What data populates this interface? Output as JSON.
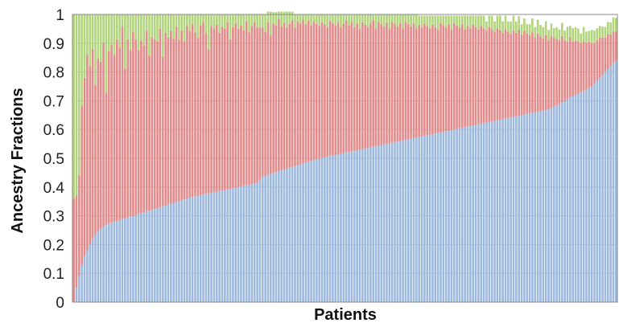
{
  "chart_data": {
    "type": "bar",
    "stacked": true,
    "xlabel": "Patients",
    "ylabel": "Ancestry Fractions",
    "ylim": [
      0,
      1
    ],
    "yticks": [
      "0",
      "0.1",
      "0.2",
      "0.3",
      "0.4",
      "0.5",
      "0.6",
      "0.7",
      "0.8",
      "0.9",
      "1"
    ],
    "grid": true,
    "legend": "none",
    "sort": "ascending by first series",
    "series": [
      {
        "color": "#9db9de",
        "values": [
          0.0,
          0.05,
          0.09,
          0.13,
          0.16,
          0.18,
          0.2,
          0.22,
          0.235,
          0.245,
          0.255,
          0.262,
          0.268,
          0.272,
          0.276,
          0.279,
          0.282,
          0.285,
          0.288,
          0.291,
          0.294,
          0.297,
          0.3,
          0.303,
          0.306,
          0.309,
          0.312,
          0.315,
          0.318,
          0.321,
          0.324,
          0.327,
          0.33,
          0.333,
          0.336,
          0.339,
          0.342,
          0.345,
          0.348,
          0.351,
          0.354,
          0.357,
          0.36,
          0.363,
          0.366,
          0.368,
          0.37,
          0.372,
          0.374,
          0.376,
          0.378,
          0.38,
          0.382,
          0.384,
          0.386,
          0.388,
          0.39,
          0.392,
          0.394,
          0.396,
          0.398,
          0.4,
          0.402,
          0.404,
          0.406,
          0.408,
          0.41,
          0.412,
          0.415,
          0.425,
          0.435,
          0.44,
          0.443,
          0.446,
          0.449,
          0.452,
          0.455,
          0.458,
          0.461,
          0.464,
          0.467,
          0.47,
          0.473,
          0.476,
          0.479,
          0.482,
          0.485,
          0.488,
          0.491,
          0.494,
          0.497,
          0.5,
          0.502,
          0.504,
          0.506,
          0.508,
          0.51,
          0.512,
          0.514,
          0.516,
          0.518,
          0.52,
          0.522,
          0.524,
          0.526,
          0.528,
          0.53,
          0.532,
          0.534,
          0.536,
          0.538,
          0.54,
          0.542,
          0.544,
          0.546,
          0.548,
          0.55,
          0.552,
          0.554,
          0.556,
          0.558,
          0.56,
          0.562,
          0.564,
          0.566,
          0.568,
          0.57,
          0.572,
          0.574,
          0.576,
          0.578,
          0.58,
          0.582,
          0.584,
          0.586,
          0.588,
          0.59,
          0.592,
          0.594,
          0.596,
          0.598,
          0.6,
          0.602,
          0.604,
          0.606,
          0.608,
          0.61,
          0.612,
          0.614,
          0.616,
          0.618,
          0.62,
          0.622,
          0.624,
          0.626,
          0.628,
          0.63,
          0.632,
          0.634,
          0.636,
          0.638,
          0.64,
          0.642,
          0.644,
          0.646,
          0.648,
          0.65,
          0.652,
          0.654,
          0.656,
          0.658,
          0.66,
          0.662,
          0.664,
          0.666,
          0.668,
          0.67,
          0.675,
          0.68,
          0.685,
          0.69,
          0.695,
          0.7,
          0.705,
          0.71,
          0.715,
          0.72,
          0.725,
          0.73,
          0.735,
          0.74,
          0.745,
          0.75,
          0.76,
          0.77,
          0.78,
          0.79,
          0.8,
          0.81,
          0.82,
          0.83,
          0.84
        ]
      },
      {
        "color": "#e38a8a",
        "values": [
          0.36,
          0.32,
          0.35,
          0.55,
          0.62,
          0.68,
          0.62,
          0.66,
          0.52,
          0.6,
          0.58,
          0.64,
          0.46,
          0.6,
          0.62,
          0.58,
          0.63,
          0.6,
          0.67,
          0.52,
          0.62,
          0.58,
          0.64,
          0.61,
          0.57,
          0.6,
          0.58,
          0.63,
          0.54,
          0.6,
          0.59,
          0.58,
          0.62,
          0.52,
          0.6,
          0.58,
          0.6,
          0.57,
          0.61,
          0.56,
          0.59,
          0.55,
          0.6,
          0.58,
          0.6,
          0.57,
          0.55,
          0.59,
          0.6,
          0.56,
          0.5,
          0.58,
          0.57,
          0.58,
          0.55,
          0.57,
          0.56,
          0.58,
          0.52,
          0.56,
          0.57,
          0.55,
          0.56,
          0.54,
          0.57,
          0.53,
          0.55,
          0.56,
          0.54,
          0.53,
          0.52,
          0.5,
          0.53,
          0.48,
          0.52,
          0.51,
          0.53,
          0.5,
          0.51,
          0.49,
          0.5,
          0.51,
          0.48,
          0.5,
          0.49,
          0.5,
          0.48,
          0.49,
          0.47,
          0.48,
          0.47,
          0.46,
          0.47,
          0.46,
          0.45,
          0.47,
          0.46,
          0.45,
          0.46,
          0.44,
          0.45,
          0.46,
          0.44,
          0.45,
          0.43,
          0.44,
          0.42,
          0.44,
          0.43,
          0.42,
          0.43,
          0.44,
          0.41,
          0.43,
          0.42,
          0.41,
          0.42,
          0.4,
          0.42,
          0.41,
          0.4,
          0.41,
          0.39,
          0.41,
          0.4,
          0.39,
          0.4,
          0.38,
          0.39,
          0.38,
          0.39,
          0.38,
          0.37,
          0.38,
          0.37,
          0.36,
          0.38,
          0.37,
          0.36,
          0.37,
          0.35,
          0.37,
          0.36,
          0.35,
          0.36,
          0.34,
          0.35,
          0.34,
          0.35,
          0.34,
          0.33,
          0.34,
          0.33,
          0.32,
          0.33,
          0.32,
          0.31,
          0.32,
          0.31,
          0.3,
          0.31,
          0.3,
          0.29,
          0.3,
          0.29,
          0.3,
          0.28,
          0.29,
          0.28,
          0.27,
          0.28,
          0.26,
          0.27,
          0.26,
          0.25,
          0.26,
          0.24,
          0.25,
          0.24,
          0.23,
          0.22,
          0.23,
          0.21,
          0.2,
          0.21,
          0.19,
          0.19,
          0.18,
          0.17,
          0.17,
          0.16,
          0.16,
          0.15,
          0.14,
          0.14,
          0.14,
          0.13,
          0.12,
          0.12,
          0.11,
          0.11,
          0.1,
          0.1,
          0.1
        ]
      },
      {
        "color": "#b1d47c",
        "values": [
          0.64,
          0.63,
          0.56,
          0.32,
          0.22,
          0.14,
          0.18,
          0.12,
          0.245,
          0.155,
          0.165,
          0.098,
          0.272,
          0.128,
          0.104,
          0.141,
          0.088,
          0.115,
          0.042,
          0.189,
          0.086,
          0.123,
          0.06,
          0.087,
          0.124,
          0.091,
          0.108,
          0.055,
          0.142,
          0.079,
          0.086,
          0.093,
          0.05,
          0.147,
          0.064,
          0.081,
          0.058,
          0.085,
          0.042,
          0.089,
          0.056,
          0.093,
          0.04,
          0.057,
          0.034,
          0.062,
          0.08,
          0.038,
          0.026,
          0.064,
          0.122,
          0.04,
          0.048,
          0.036,
          0.064,
          0.042,
          0.05,
          0.028,
          0.086,
          0.044,
          0.032,
          0.05,
          0.038,
          0.056,
          0.024,
          0.062,
          0.04,
          0.028,
          0.046,
          0.045,
          0.045,
          0.06,
          0.037,
          0.084,
          0.039,
          0.046,
          0.025,
          0.052,
          0.039,
          0.056,
          0.043,
          0.03,
          0.047,
          0.024,
          0.031,
          0.018,
          0.035,
          0.022,
          0.039,
          0.026,
          0.033,
          0.04,
          0.028,
          0.036,
          0.044,
          0.022,
          0.03,
          0.038,
          0.026,
          0.044,
          0.032,
          0.02,
          0.038,
          0.026,
          0.044,
          0.032,
          0.05,
          0.028,
          0.036,
          0.044,
          0.032,
          0.02,
          0.048,
          0.026,
          0.034,
          0.042,
          0.03,
          0.048,
          0.026,
          0.034,
          0.042,
          0.03,
          0.048,
          0.026,
          0.034,
          0.042,
          0.03,
          0.048,
          0.032,
          0.04,
          0.028,
          0.036,
          0.044,
          0.032,
          0.04,
          0.048,
          0.026,
          0.034,
          0.042,
          0.03,
          0.048,
          0.026,
          0.034,
          0.042,
          0.03,
          0.048,
          0.036,
          0.044,
          0.032,
          0.04,
          0.048,
          0.036,
          0.044,
          0.032,
          0.04,
          0.048,
          0.036,
          0.044,
          0.052,
          0.04,
          0.048,
          0.036,
          0.044,
          0.052,
          0.04,
          0.046,
          0.036,
          0.044,
          0.032,
          0.04,
          0.048,
          0.036,
          0.05,
          0.04,
          0.04,
          0.048,
          0.036,
          0.044,
          0.032,
          0.04,
          0.038,
          0.046,
          0.034,
          0.052,
          0.04,
          0.048,
          0.046,
          0.046,
          0.034,
          0.052,
          0.04,
          0.038,
          0.046,
          0.044,
          0.042,
          0.04,
          0.038,
          0.036,
          0.044,
          0.042,
          0.05,
          0.048,
          0.05,
          0.06
        ]
      }
    ]
  }
}
